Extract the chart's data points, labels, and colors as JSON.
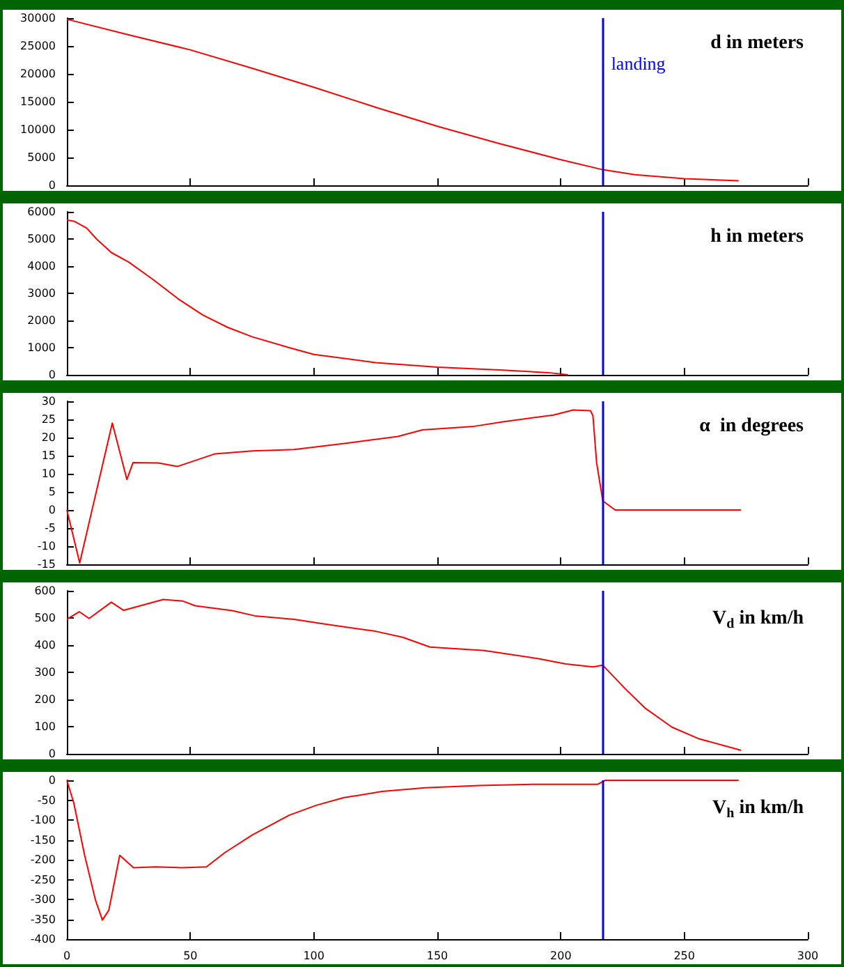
{
  "chart_data": [
    {
      "type": "line",
      "title": "d in meters",
      "x": [
        0,
        25,
        50,
        75,
        100,
        125,
        150,
        175,
        200,
        217,
        230,
        250,
        272
      ],
      "series": [
        {
          "color": "#ff0000",
          "values": [
            29800,
            27000,
            24300,
            21000,
            17600,
            14000,
            10600,
            7500,
            4600,
            2800,
            1900,
            1200,
            800
          ]
        }
      ],
      "xlim": [
        0,
        300
      ],
      "xticks": [
        0,
        50,
        100,
        150,
        200,
        250,
        300
      ],
      "ylim": [
        0,
        30000
      ],
      "yticks": [
        0,
        5000,
        10000,
        15000,
        20000,
        25000,
        30000
      ],
      "tick_labels": "y",
      "ref_lines": [
        {
          "axis": "x",
          "value": 217,
          "label": "landing",
          "color": "#0000ff"
        }
      ]
    },
    {
      "type": "line",
      "title": "h in meters",
      "x": [
        0,
        3,
        8,
        12,
        18,
        25,
        35,
        45,
        55,
        65,
        75,
        90,
        100,
        125,
        150,
        175,
        195,
        203
      ],
      "series": [
        {
          "color": "#ff0000",
          "values": [
            5700,
            5650,
            5400,
            5000,
            4500,
            4150,
            3500,
            2800,
            2200,
            1750,
            1400,
            1000,
            750,
            450,
            280,
            180,
            80,
            0
          ]
        }
      ],
      "xlim": [
        0,
        300
      ],
      "xticks": [
        0,
        50,
        100,
        150,
        200,
        250,
        300
      ],
      "ylim": [
        0,
        6000
      ],
      "yticks": [
        0,
        1000,
        2000,
        3000,
        4000,
        5000,
        6000
      ],
      "tick_labels": "y",
      "ref_lines": [
        {
          "axis": "x",
          "value": 217,
          "color": "#0000ff"
        }
      ]
    },
    {
      "type": "line",
      "title": "α  in degrees",
      "x": [
        0,
        5.2,
        18.4,
        24.3,
        26.8,
        37,
        44.7,
        60,
        75,
        92,
        113,
        134,
        144,
        165,
        176,
        197,
        205,
        212,
        213,
        214.5,
        217,
        222,
        273
      ],
      "series": [
        {
          "color": "#ff0000",
          "values": [
            0,
            -14.6,
            24,
            8.4,
            13.1,
            13,
            12,
            15.5,
            16.3,
            16.7,
            18.4,
            20.3,
            22.1,
            23.1,
            24.3,
            26.2,
            27.6,
            27.4,
            26,
            13,
            2.5,
            0,
            0
          ]
        }
      ],
      "xlim": [
        0,
        300
      ],
      "xticks": [
        0,
        50,
        100,
        150,
        200,
        250,
        300
      ],
      "ylim": [
        -15,
        30
      ],
      "yticks": [
        -15,
        -10,
        -5,
        0,
        5,
        10,
        15,
        20,
        25,
        30
      ],
      "tick_labels": "y",
      "ref_lines": [
        {
          "axis": "x",
          "value": 217,
          "color": "#0000ff"
        }
      ]
    },
    {
      "type": "line",
      "title": "V$_{d}$ in km/h",
      "x": [
        0,
        5,
        9,
        18,
        23,
        39,
        47,
        52,
        67,
        76,
        92,
        104,
        125,
        136,
        147,
        169,
        191,
        202,
        213,
        217,
        226,
        234,
        245,
        256,
        273
      ],
      "series": [
        {
          "color": "#ff0000",
          "values": [
            495,
            523,
            498,
            558,
            528,
            568,
            562,
            545,
            527,
            508,
            495,
            478,
            451,
            429,
            393,
            380,
            350,
            331,
            320,
            326,
            240,
            169,
            98,
            55,
            13
          ]
        }
      ],
      "xlim": [
        0,
        300
      ],
      "xticks": [
        0,
        50,
        100,
        150,
        200,
        250,
        300
      ],
      "ylim": [
        0,
        600
      ],
      "yticks": [
        0,
        100,
        200,
        300,
        400,
        500,
        600
      ],
      "tick_labels": "y",
      "ref_lines": [
        {
          "axis": "x",
          "value": 217,
          "color": "#0000ff"
        }
      ]
    },
    {
      "type": "line",
      "title": "V$_{h}$ in km/h",
      "x": [
        0,
        2.8,
        7.2,
        11.6,
        14.4,
        17,
        21.4,
        27,
        35.7,
        46.6,
        56.5,
        64,
        75,
        90,
        101,
        112,
        127.6,
        145,
        167,
        189,
        200,
        215,
        218,
        272
      ],
      "series": [
        {
          "color": "#ff0000",
          "values": [
            0,
            -57,
            -189,
            -302,
            -352,
            -327,
            -189,
            -220,
            -218,
            -220,
            -218,
            -182,
            -138,
            -88,
            -63,
            -44,
            -28,
            -19,
            -13,
            -10,
            -10,
            -10,
            0,
            0
          ]
        }
      ],
      "xlim": [
        0,
        300
      ],
      "xticks": [
        0,
        50,
        100,
        150,
        200,
        250,
        300
      ],
      "ylim": [
        -400,
        0
      ],
      "yticks": [
        -400,
        -350,
        -300,
        -250,
        -200,
        -150,
        -100,
        -50,
        0
      ],
      "ref_lines": [
        {
          "axis": "x",
          "value": 217,
          "color": "#0000ff"
        }
      ]
    }
  ]
}
